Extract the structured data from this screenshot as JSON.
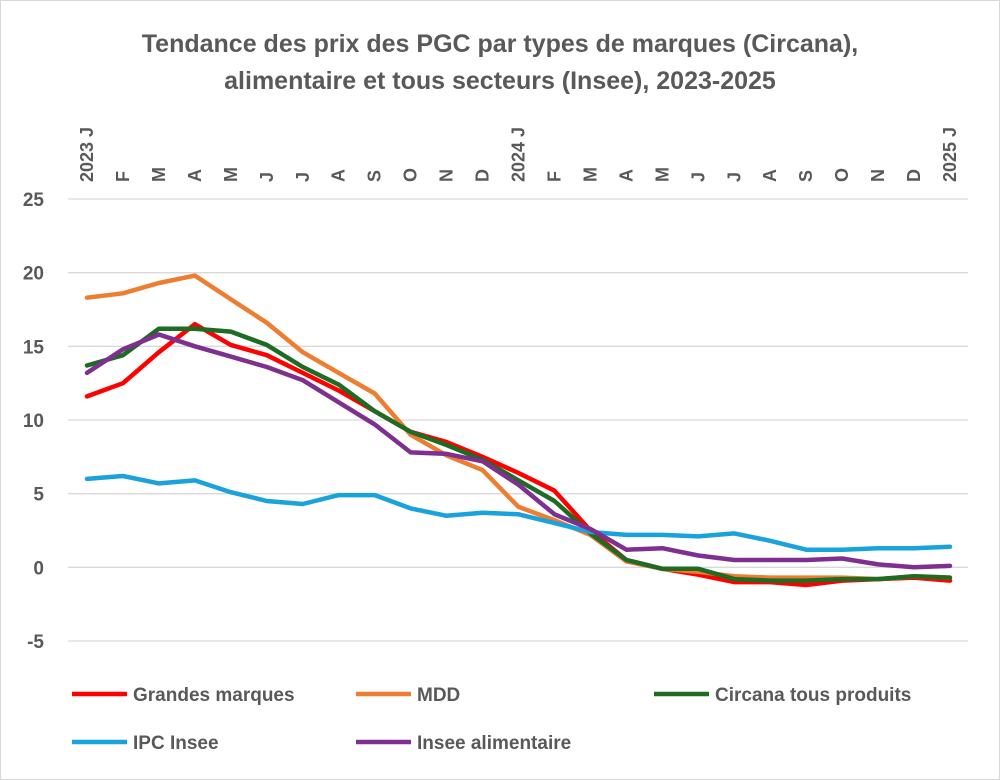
{
  "chart_data": {
    "type": "line",
    "title_lines": [
      "Tendance des prix des PGC par types de marques (Circana),",
      "alimentaire et tous secteurs (Insee), 2023-2025"
    ],
    "x": [
      "2023 J",
      "F",
      "M",
      "A",
      "M",
      "J",
      "J",
      "A",
      "S",
      "O",
      "N",
      "D",
      "2024 J",
      "F",
      "M",
      "A",
      "M",
      "J",
      "J",
      "A",
      "S",
      "O",
      "N",
      "D",
      "2025 J"
    ],
    "ylim": [
      -5,
      25
    ],
    "yticks": [
      25,
      20,
      15,
      10,
      5,
      0,
      -5
    ],
    "grid": true,
    "legend_position": "bottom",
    "series": [
      {
        "name": "Grandes marques",
        "color": "#ff0000",
        "values": [
          11.6,
          12.5,
          14.6,
          16.5,
          15.1,
          14.4,
          13.2,
          12.0,
          10.6,
          9.2,
          8.5,
          7.5,
          6.4,
          5.2,
          2.5,
          0.5,
          -0.1,
          -0.5,
          -1.0,
          -1.0,
          -1.2,
          -0.9,
          -0.8,
          -0.7,
          -0.9
        ]
      },
      {
        "name": "MDD",
        "color": "#ed7d31",
        "values": [
          18.3,
          18.6,
          19.3,
          19.8,
          18.2,
          16.6,
          14.6,
          13.2,
          11.8,
          9.0,
          7.6,
          6.6,
          4.1,
          3.2,
          2.2,
          0.4,
          -0.1,
          -0.3,
          -0.6,
          -0.7,
          -0.7,
          -0.7,
          -0.8,
          -0.6,
          -0.7
        ]
      },
      {
        "name": "Circana tous produits",
        "color": "#1e6b24",
        "values": [
          13.7,
          14.4,
          16.2,
          16.2,
          16.0,
          15.1,
          13.6,
          12.4,
          10.6,
          9.2,
          8.3,
          7.3,
          5.9,
          4.5,
          2.3,
          0.5,
          -0.1,
          -0.1,
          -0.8,
          -0.9,
          -0.9,
          -0.8,
          -0.8,
          -0.6,
          -0.7
        ]
      },
      {
        "name": "IPC Insee",
        "color": "#1aa2dc",
        "values": [
          6.0,
          6.2,
          5.7,
          5.9,
          5.1,
          4.5,
          4.3,
          4.9,
          4.9,
          4.0,
          3.5,
          3.7,
          3.6,
          3.0,
          2.4,
          2.2,
          2.2,
          2.1,
          2.3,
          1.8,
          1.2,
          1.2,
          1.3,
          1.3,
          1.4
        ]
      },
      {
        "name": "Insee alimentaire",
        "color": "#7f2f8f",
        "values": [
          13.2,
          14.8,
          15.8,
          15.0,
          14.3,
          13.6,
          12.7,
          11.2,
          9.7,
          7.8,
          7.7,
          7.2,
          5.6,
          3.6,
          2.6,
          1.2,
          1.3,
          0.8,
          0.5,
          0.5,
          0.5,
          0.6,
          0.2,
          0.0,
          0.1
        ]
      }
    ]
  }
}
